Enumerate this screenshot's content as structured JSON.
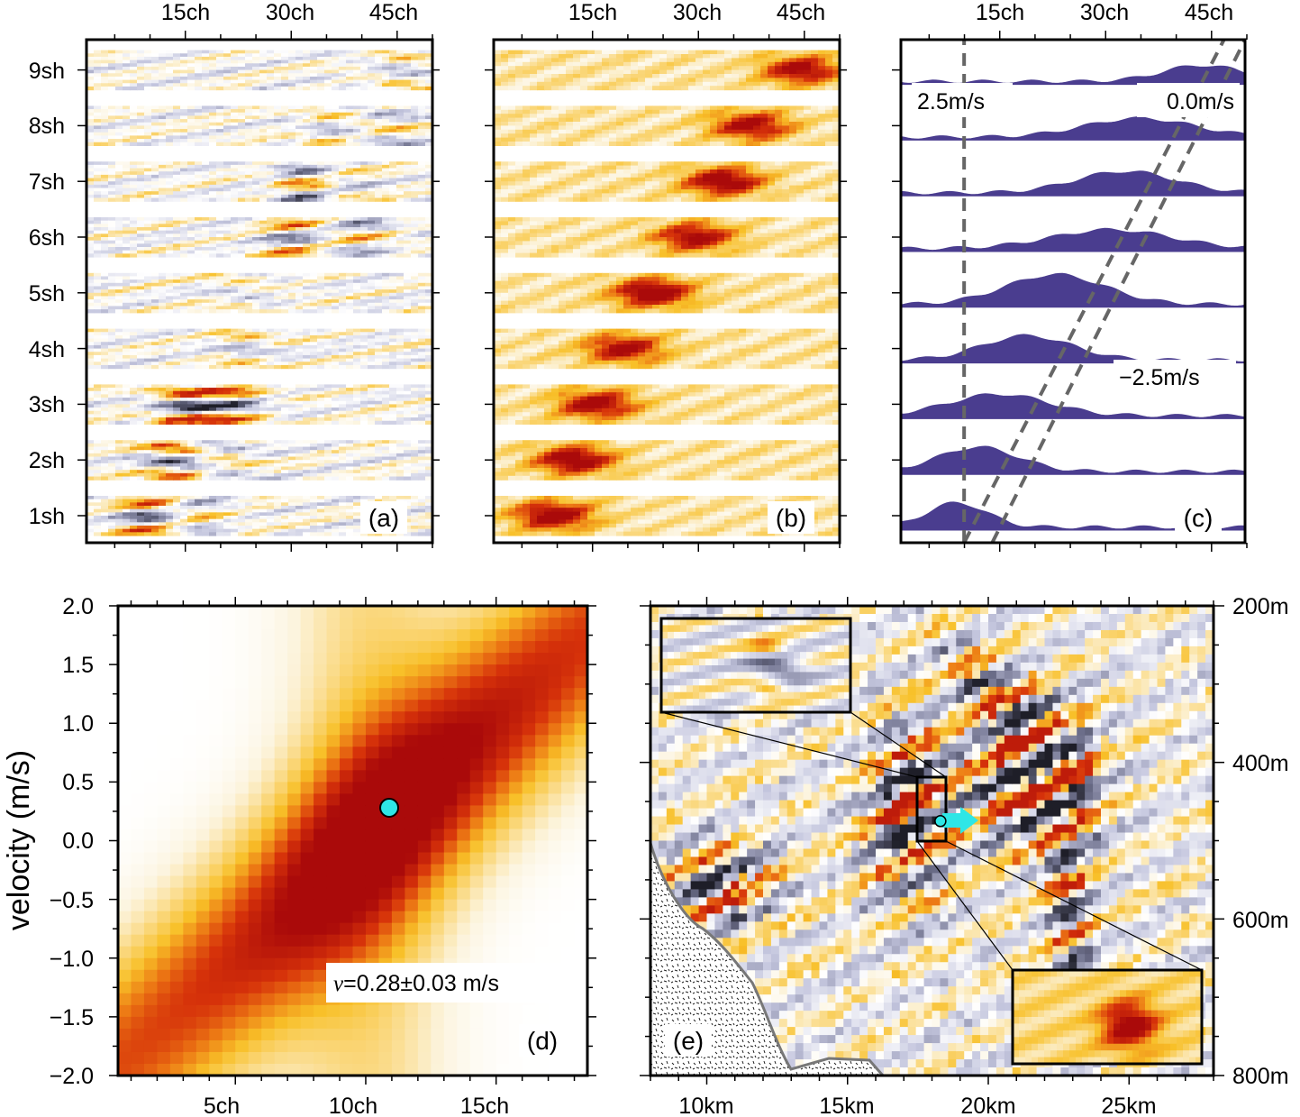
{
  "chart_data": [
    {
      "panel": "(a)",
      "type": "heatmap",
      "description_label": "(a)",
      "x_ticks": [
        "15ch",
        "30ch",
        "45ch"
      ],
      "x_tick_values": [
        15,
        30,
        45
      ],
      "xlim": [
        1,
        50
      ],
      "y_ticks": [
        "1sh",
        "2sh",
        "3sh",
        "4sh",
        "5sh",
        "6sh",
        "7sh",
        "8sh",
        "9sh"
      ],
      "y_tick_values": [
        1,
        2,
        3,
        4,
        5,
        6,
        7,
        8,
        9
      ],
      "ylim": [
        0.5,
        9.5
      ],
      "colormap": "polar",
      "strips": [
        {
          "shot": 1,
          "peaks": [
            [
              10,
              0.9,
              -1
            ],
            [
              16,
              0.5,
              1
            ]
          ]
        },
        {
          "shot": 2,
          "peaks": [
            [
              13,
              1.0,
              -1
            ],
            [
              20,
              0.6,
              1
            ]
          ]
        },
        {
          "shot": 3,
          "peaks": [
            [
              14,
              0.9,
              -1
            ],
            [
              22,
              0.7,
              -1
            ]
          ]
        },
        {
          "shot": 4,
          "peaks": [
            [
              22,
              0.9,
              -1
            ],
            [
              20,
              0.5,
              1
            ]
          ]
        },
        {
          "shot": 5,
          "peaks": [
            [
              24,
              1.0,
              -1
            ],
            [
              26,
              0.8,
              1
            ]
          ]
        },
        {
          "shot": 6,
          "peaks": [
            [
              30,
              0.6,
              -1
            ],
            [
              40,
              0.5,
              1
            ]
          ]
        },
        {
          "shot": 7,
          "peaks": [
            [
              32,
              0.9,
              1
            ],
            [
              36,
              0.6,
              -1
            ]
          ]
        },
        {
          "shot": 8,
          "peaks": [
            [
              35,
              0.5,
              -1
            ],
            [
              42,
              0.6,
              1
            ]
          ]
        },
        {
          "shot": 9,
          "peaks": [
            [
              45,
              0.7,
              -1
            ],
            [
              40,
              0.4,
              1
            ]
          ]
        }
      ]
    },
    {
      "panel": "(b)",
      "type": "heatmap",
      "description_label": "(b)",
      "x_ticks": [
        "15ch",
        "30ch",
        "45ch"
      ],
      "x_tick_values": [
        15,
        30,
        45
      ],
      "xlim": [
        1,
        50
      ],
      "ylim": [
        0.5,
        9.5
      ],
      "colormap": "hot",
      "strips": [
        {
          "shot": 1,
          "center": 9,
          "amp": 0.95
        },
        {
          "shot": 2,
          "center": 12,
          "amp": 0.95
        },
        {
          "shot": 3,
          "center": 15,
          "amp": 0.9
        },
        {
          "shot": 4,
          "center": 19,
          "amp": 0.85
        },
        {
          "shot": 5,
          "center": 23,
          "amp": 1.0
        },
        {
          "shot": 6,
          "center": 29,
          "amp": 0.85
        },
        {
          "shot": 7,
          "center": 33,
          "amp": 0.95
        },
        {
          "shot": 8,
          "center": 37,
          "amp": 0.85
        },
        {
          "shot": 9,
          "center": 44,
          "amp": 0.85
        }
      ]
    },
    {
      "panel": "(c)",
      "type": "area",
      "description_label": "(c)",
      "x_ticks": [
        "15ch",
        "30ch",
        "45ch"
      ],
      "x_tick_values": [
        15,
        30,
        45
      ],
      "xlim": [
        1,
        50
      ],
      "ylim": [
        0.5,
        9.5
      ],
      "trace_peaks": [
        {
          "shot": 1,
          "center": 9,
          "width": 6,
          "height": 0.45
        },
        {
          "shot": 2,
          "center": 12,
          "width": 8,
          "height": 0.45
        },
        {
          "shot": 3,
          "center": 15,
          "width": 10,
          "height": 0.4
        },
        {
          "shot": 4,
          "center": 19,
          "width": 9,
          "height": 0.45
        },
        {
          "shot": 5,
          "center": 23,
          "width": 10,
          "height": 0.55
        },
        {
          "shot": 6,
          "center": 31,
          "width": 12,
          "height": 0.35
        },
        {
          "shot": 7,
          "center": 33,
          "width": 10,
          "height": 0.4
        },
        {
          "shot": 8,
          "center": 35,
          "width": 11,
          "height": 0.35
        },
        {
          "shot": 9,
          "center": 44,
          "width": 8,
          "height": 0.3
        }
      ],
      "reference_lines": [
        {
          "label": "2.5m/s",
          "channel_start": 10,
          "channel_end": 10
        },
        {
          "label": "0.0m/s",
          "channel_start": 10,
          "channel_end": 47
        },
        {
          "label": "−2.5m/s",
          "channel_start": 14,
          "channel_end": 50
        }
      ]
    },
    {
      "panel": "(d)",
      "type": "heatmap",
      "description_label": "(d)",
      "ylabel": "velocity (m/s)",
      "x_ticks": [
        "5ch",
        "10ch",
        "15ch"
      ],
      "x_tick_values": [
        5,
        10,
        15
      ],
      "xlim": [
        0.5,
        18.5
      ],
      "y_ticks": [
        "−2.0",
        "−1.5",
        "−1.0",
        "−0.5",
        "0.0",
        "0.5",
        "1.0",
        "1.5",
        "2.0"
      ],
      "y_tick_values": [
        -2.0,
        -1.5,
        -1.0,
        -0.5,
        0.0,
        0.5,
        1.0,
        1.5,
        2.0
      ],
      "ylim": [
        -2.0,
        2.0
      ],
      "ridge_slope": 0.2,
      "ridge_intercept": -2.0,
      "marker": {
        "x": 10.9,
        "y": 0.28,
        "color": "#2ee6e6"
      },
      "annotation": "v=0.28±0.03 m/s",
      "annotation_symbol": "v",
      "annotation_rest": "=0.28±0.03 m/s"
    },
    {
      "panel": "(e)",
      "type": "heatmap",
      "description_label": "(e)",
      "x_ticks": [
        "10km",
        "15km",
        "20km",
        "25km"
      ],
      "x_tick_values": [
        10,
        15,
        20,
        25
      ],
      "xlim": [
        8,
        28
      ],
      "y_ticks": [
        "200m",
        "400m",
        "600m",
        "800m"
      ],
      "y_tick_values": [
        200,
        400,
        600,
        800
      ],
      "ylim": [
        200,
        800
      ],
      "marker": {
        "x": 18.3,
        "y": 475,
        "color": "#2ee6e6"
      },
      "arrow_color": "#2ee6e6",
      "zoom_box": {
        "x": [
          17.6,
          18.6
        ],
        "y": [
          420,
          505
        ]
      }
    }
  ]
}
